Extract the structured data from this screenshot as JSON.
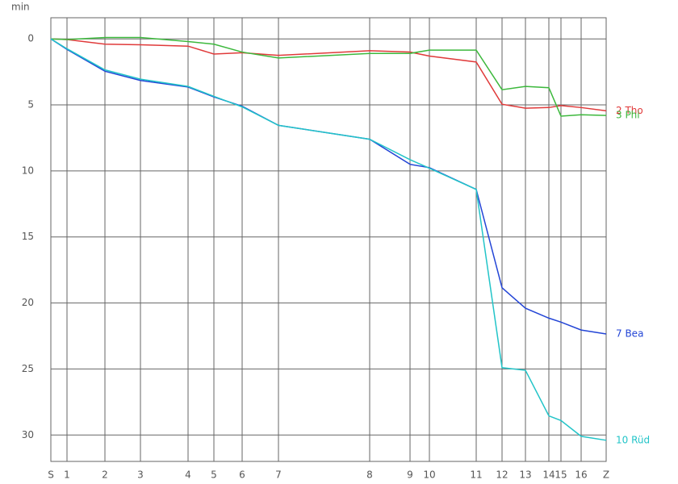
{
  "chart_data": {
    "type": "line",
    "y_label": "min",
    "x": [
      0,
      20,
      67,
      111,
      170,
      202,
      237,
      282,
      395,
      445,
      469,
      527,
      559,
      588,
      617,
      632,
      657,
      688
    ],
    "xlim": [
      0,
      688
    ],
    "xticks": [
      {
        "value": 0,
        "label": "S"
      },
      {
        "value": 20,
        "label": "1"
      },
      {
        "value": 67,
        "label": "2"
      },
      {
        "value": 111,
        "label": "3"
      },
      {
        "value": 170,
        "label": "4"
      },
      {
        "value": 202,
        "label": "5"
      },
      {
        "value": 237,
        "label": "6"
      },
      {
        "value": 282,
        "label": "7"
      },
      {
        "value": 395,
        "label": "8"
      },
      {
        "value": 445,
        "label": "9"
      },
      {
        "value": 469,
        "label": "10"
      },
      {
        "value": 527,
        "label": "11"
      },
      {
        "value": 559,
        "label": "12"
      },
      {
        "value": 588,
        "label": "13"
      },
      {
        "value": 617,
        "label": "14"
      },
      {
        "value": 632,
        "label": "15"
      },
      {
        "value": 657,
        "label": "16"
      },
      {
        "value": 688,
        "label": "Z"
      }
    ],
    "ylim": [
      -1.6,
      32
    ],
    "y_inverted": true,
    "yticks": [
      0,
      5,
      10,
      15,
      20,
      25,
      30
    ],
    "grid": true,
    "series": [
      {
        "name": "2 Tho",
        "color": "#e03a3a",
        "values": [
          0,
          0.05,
          0.4,
          0.45,
          0.55,
          1.15,
          1.05,
          1.25,
          0.9,
          1.0,
          1.3,
          1.75,
          4.95,
          5.25,
          5.2,
          5.05,
          5.2,
          5.45
        ]
      },
      {
        "name": "3 Phi",
        "color": "#3cb83c",
        "values": [
          0,
          0.05,
          -0.1,
          -0.1,
          0.2,
          0.4,
          1.0,
          1.45,
          1.1,
          1.1,
          0.85,
          0.85,
          3.85,
          3.6,
          3.7,
          5.85,
          5.75,
          5.8
        ]
      },
      {
        "name": "7 Bea",
        "color": "#2345d6",
        "values": [
          0,
          0.8,
          2.45,
          3.15,
          3.65,
          4.4,
          5.1,
          6.55,
          7.6,
          9.5,
          9.75,
          11.4,
          18.85,
          20.4,
          21.15,
          21.45,
          22.05,
          22.35
        ]
      },
      {
        "name": "10 Rüd",
        "color": "#22c4c8",
        "values": [
          0,
          0.75,
          2.35,
          3.05,
          3.6,
          4.35,
          5.15,
          6.55,
          7.6,
          9.15,
          9.8,
          11.4,
          24.9,
          25.1,
          28.55,
          28.9,
          30.1,
          30.4
        ]
      }
    ]
  }
}
